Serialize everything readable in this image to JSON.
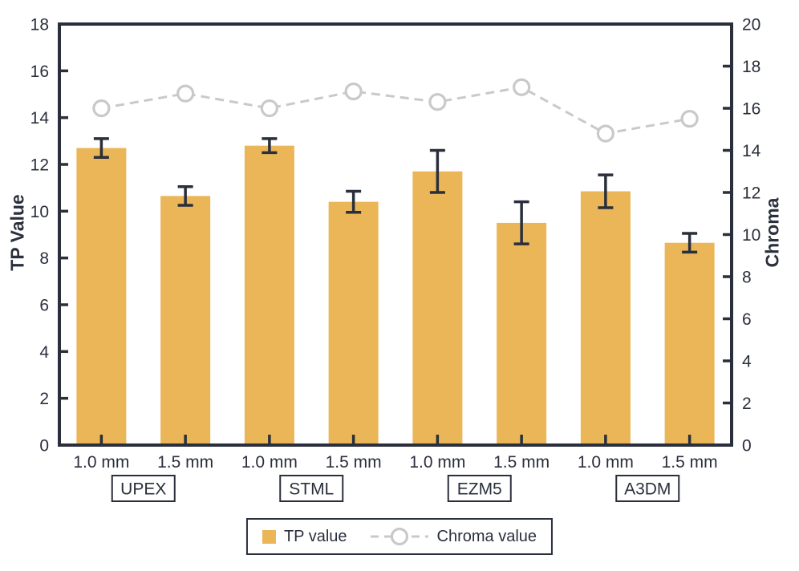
{
  "chart_data": {
    "type": "bar",
    "title": "",
    "groups": [
      "UPEX",
      "STML",
      "EZM5",
      "A3DM"
    ],
    "x_labels": [
      "1.0 mm",
      "1.5 mm",
      "1.0 mm",
      "1.5 mm",
      "1.0 mm",
      "1.5 mm",
      "1.0 mm",
      "1.5 mm"
    ],
    "series": [
      {
        "name": "TP value",
        "type": "bar",
        "axis": "left",
        "color": "#EAB657",
        "values": [
          12.7,
          10.65,
          12.8,
          10.4,
          11.7,
          9.5,
          10.85,
          8.65
        ],
        "errors": [
          0.4,
          0.4,
          0.3,
          0.45,
          0.9,
          0.9,
          0.7,
          0.4
        ]
      },
      {
        "name": "Chroma value",
        "type": "line",
        "axis": "right",
        "color": "#C8CAC9",
        "line_style": "dashed",
        "marker": "open-circle",
        "values": [
          16.0,
          16.7,
          16.0,
          16.8,
          16.3,
          17.0,
          14.8,
          15.5
        ]
      }
    ],
    "left_axis": {
      "label": "TP Value",
      "min": 0,
      "max": 18,
      "tick_step": 2,
      "ticks": [
        0,
        2,
        4,
        6,
        8,
        10,
        12,
        14,
        16,
        18
      ]
    },
    "right_axis": {
      "label": "Chroma",
      "min": 0,
      "max": 20,
      "tick_step": 2,
      "ticks": [
        0,
        2,
        4,
        6,
        8,
        10,
        12,
        14,
        16,
        18,
        20
      ]
    },
    "legend": {
      "position": "bottom",
      "items": [
        "TP value",
        "Chroma value"
      ]
    },
    "grid": false
  },
  "colors": {
    "bar": "#EAB657",
    "line": "#C8CAC9",
    "axis": "#2A2F3C",
    "text": "#2A2F3C",
    "background": "#FFFFFF"
  }
}
